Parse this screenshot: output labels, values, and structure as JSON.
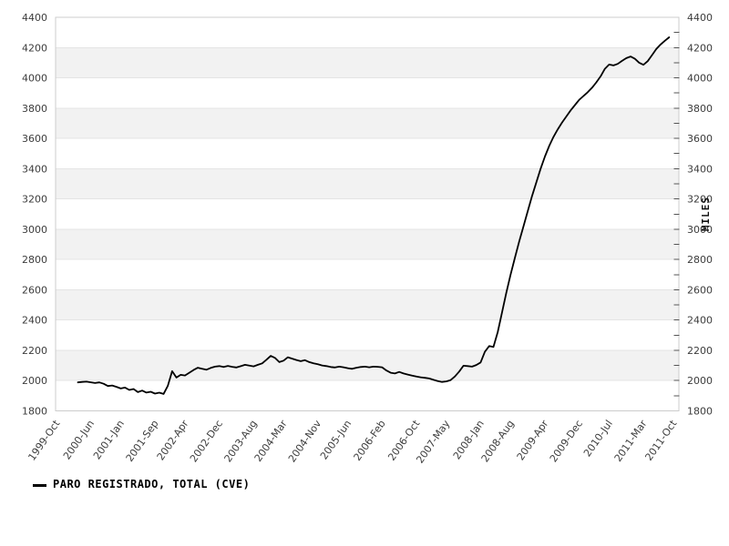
{
  "legend": {
    "label": "PARO REGISTRADO, TOTAL (CVE)"
  },
  "chart_data": {
    "type": "line",
    "title": "",
    "xlabel": "",
    "ylabel_right": "MILES",
    "ylim": [
      1800,
      4400
    ],
    "y_major_step": 200,
    "y_minor_step": 100,
    "grid": "horizontal-bands",
    "legend_position": "bottom-left",
    "x_axis_note": "monthly series; axis spans 1999-Oct to 2011-Oct",
    "x_tick_labels": [
      {
        "month_offset": 0,
        "label": "1999-Oct"
      },
      {
        "month_offset": 8,
        "label": "2000-Jun"
      },
      {
        "month_offset": 15,
        "label": "2001-Jan"
      },
      {
        "month_offset": 23,
        "label": "2001-Sep"
      },
      {
        "month_offset": 30,
        "label": "2002-Apr"
      },
      {
        "month_offset": 38,
        "label": "2002-Dec"
      },
      {
        "month_offset": 46,
        "label": "2003-Aug"
      },
      {
        "month_offset": 53,
        "label": "2004-Mar"
      },
      {
        "month_offset": 61,
        "label": "2004-Nov"
      },
      {
        "month_offset": 68,
        "label": "2005-Jun"
      },
      {
        "month_offset": 76,
        "label": "2006-Feb"
      },
      {
        "month_offset": 84,
        "label": "2006-Oct"
      },
      {
        "month_offset": 91,
        "label": "2007-May"
      },
      {
        "month_offset": 99,
        "label": "2008-Jan"
      },
      {
        "month_offset": 106,
        "label": "2008-Aug"
      },
      {
        "month_offset": 114,
        "label": "2009-Apr"
      },
      {
        "month_offset": 122,
        "label": "2009-Dec"
      },
      {
        "month_offset": 129,
        "label": "2010-Jul"
      },
      {
        "month_offset": 137,
        "label": "2011-Mar"
      },
      {
        "month_offset": 144,
        "label": "2011-Oct"
      }
    ],
    "y_tick_labels": [
      1800,
      2000,
      2200,
      2400,
      2600,
      2800,
      3000,
      3200,
      3400,
      3600,
      3800,
      4000,
      4200,
      4400
    ],
    "series": [
      {
        "name": "PARO REGISTRADO, TOTAL (CVE)",
        "start_month": "2000-Mar",
        "start_offset_months": 5,
        "monthly_values": [
          1988,
          1991,
          1993,
          1989,
          1984,
          1988,
          1979,
          1964,
          1968,
          1959,
          1948,
          1954,
          1938,
          1944,
          1924,
          1934,
          1921,
          1926,
          1914,
          1920,
          1912,
          1966,
          2062,
          2020,
          2038,
          2034,
          2052,
          2070,
          2085,
          2078,
          2072,
          2084,
          2092,
          2096,
          2090,
          2097,
          2091,
          2087,
          2095,
          2104,
          2099,
          2094,
          2104,
          2114,
          2138,
          2163,
          2150,
          2122,
          2132,
          2154,
          2145,
          2136,
          2128,
          2135,
          2122,
          2114,
          2108,
          2100,
          2096,
          2090,
          2087,
          2092,
          2088,
          2082,
          2078,
          2085,
          2090,
          2092,
          2088,
          2092,
          2091,
          2088,
          2067,
          2052,
          2047,
          2057,
          2047,
          2040,
          2033,
          2027,
          2022,
          2018,
          2014,
          2005,
          1997,
          1991,
          1995,
          2003,
          2027,
          2060,
          2098,
          2096,
          2092,
          2103,
          2120,
          2190,
          2228,
          2222,
          2320,
          2450,
          2580,
          2700,
          2810,
          2920,
          3020,
          3120,
          3220,
          3310,
          3400,
          3480,
          3550,
          3610,
          3660,
          3705,
          3745,
          3785,
          3820,
          3855,
          3880,
          3905,
          3935,
          3970,
          4010,
          4060,
          4088,
          4082,
          4092,
          4112,
          4130,
          4141,
          4126,
          4100,
          4086,
          4110,
          4150,
          4190,
          4220,
          4245,
          4268
        ]
      }
    ],
    "colors": {
      "line": "#000000",
      "band_light": "#ffffff",
      "band_dark": "#f2f2f2",
      "grid_line": "#e4e4e4",
      "plot_border": "#cccccc",
      "tick": "#555555",
      "axis_text": "#3c3c3c"
    }
  }
}
